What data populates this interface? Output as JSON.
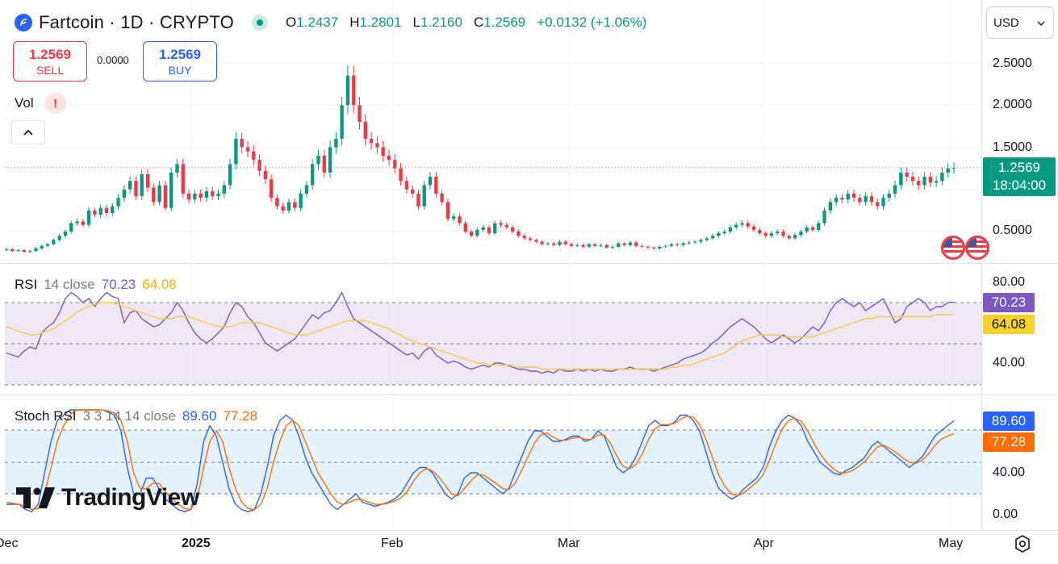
{
  "header": {
    "symbol": "Fartcoin · 1D · CRYPTO",
    "ohlc": [
      {
        "k": "O",
        "v": "1.2437"
      },
      {
        "k": "H",
        "v": "1.2801"
      },
      {
        "k": "L",
        "v": "1.2160"
      },
      {
        "k": "C",
        "v": "1.2569"
      }
    ],
    "change": "+0.0132 (+1.06%)",
    "currency": "USD"
  },
  "trade": {
    "sell_price": "1.2569",
    "sell_label": "SELL",
    "spread": "0.0000",
    "buy_price": "1.2569",
    "buy_label": "BUY"
  },
  "volume": {
    "label": "Vol",
    "warning": "!"
  },
  "price_panel": {
    "last_price": "1.2569",
    "countdown": "18:04:00",
    "y_ticks": [
      "2.5000",
      "2.0000",
      "1.5000",
      "0.5000"
    ]
  },
  "rsi": {
    "name": "RSI",
    "args": "14 close",
    "value": "70.23",
    "ma_value": "64.08",
    "y_ticks": [
      "80.00",
      "40.00"
    ]
  },
  "stoch": {
    "name": "Stoch RSI",
    "args": "3 3 14 14 close",
    "k_value": "89.60",
    "d_value": "77.28",
    "y_ticks": [
      "40.00",
      "0.00"
    ]
  },
  "x_ticks": [
    "Dec",
    "2025",
    "Feb",
    "Mar",
    "Apr",
    "May"
  ],
  "brand": "TradingView",
  "colors": {
    "up": "#089981",
    "down": "#f23645",
    "rsi_line": "#7e57c2",
    "rsi_ma": "#f7c948",
    "stoch_k": "#2962ff",
    "stoch_d": "#ff6d00",
    "rsi_band": "#ede7f6",
    "stoch_band": "#e3f2fd"
  },
  "chart_data": [
    {
      "type": "candlestick",
      "title": "Fartcoin · 1D · CRYPTO",
      "ylim": [
        0.2,
        2.8
      ],
      "x_start": "2024-11-26",
      "x_end": "2025-04-30",
      "closes": [
        0.29,
        0.27,
        0.28,
        0.26,
        0.27,
        0.3,
        0.33,
        0.35,
        0.4,
        0.45,
        0.5,
        0.6,
        0.62,
        0.58,
        0.75,
        0.7,
        0.78,
        0.72,
        0.8,
        0.9,
        1.0,
        1.1,
        0.92,
        1.18,
        1.02,
        0.85,
        1.05,
        0.78,
        1.2,
        1.3,
        0.95,
        0.88,
        0.95,
        0.9,
        0.98,
        0.92,
        0.95,
        1.05,
        1.3,
        1.6,
        1.5,
        1.45,
        1.35,
        1.22,
        1.12,
        0.9,
        0.8,
        0.75,
        0.85,
        0.78,
        0.95,
        1.05,
        1.3,
        1.4,
        1.2,
        1.5,
        1.6,
        2.0,
        2.35,
        2.0,
        1.8,
        1.6,
        1.55,
        1.5,
        1.4,
        1.35,
        1.25,
        1.1,
        1.0,
        0.95,
        0.8,
        1.05,
        1.15,
        0.95,
        0.85,
        0.65,
        0.68,
        0.6,
        0.5,
        0.45,
        0.52,
        0.55,
        0.48,
        0.6,
        0.58,
        0.55,
        0.5,
        0.45,
        0.42,
        0.4,
        0.38,
        0.35,
        0.36,
        0.34,
        0.38,
        0.35,
        0.33,
        0.34,
        0.32,
        0.35,
        0.33,
        0.34,
        0.31,
        0.32,
        0.36,
        0.34,
        0.37,
        0.33,
        0.32,
        0.31,
        0.3,
        0.32,
        0.33,
        0.35,
        0.34,
        0.36,
        0.37,
        0.38,
        0.4,
        0.42,
        0.45,
        0.48,
        0.5,
        0.55,
        0.58,
        0.6,
        0.56,
        0.52,
        0.48,
        0.45,
        0.48,
        0.5,
        0.45,
        0.42,
        0.46,
        0.5,
        0.55,
        0.52,
        0.6,
        0.75,
        0.85,
        0.9,
        0.88,
        0.95,
        0.9,
        0.85,
        0.92,
        0.85,
        0.8,
        0.9,
        0.95,
        1.05,
        1.2,
        1.15,
        1.1,
        1.05,
        1.15,
        1.08,
        1.1,
        1.2,
        1.25,
        1.2569
      ]
    },
    {
      "type": "line",
      "title": "RSI 14 close",
      "ylim": [
        20,
        90
      ],
      "series": [
        {
          "name": "RSI",
          "values": [
            45,
            44,
            43,
            46,
            48,
            47,
            55,
            58,
            60,
            65,
            72,
            75,
            73,
            70,
            72,
            68,
            72,
            75,
            73,
            72,
            60,
            65,
            66,
            62,
            60,
            58,
            59,
            62,
            65,
            70,
            66,
            60,
            55,
            52,
            50,
            52,
            55,
            58,
            65,
            70,
            68,
            63,
            60,
            55,
            50,
            48,
            46,
            48,
            50,
            52,
            56,
            60,
            64,
            62,
            65,
            66,
            70,
            75,
            68,
            62,
            60,
            58,
            56,
            54,
            52,
            50,
            48,
            46,
            44,
            45,
            42,
            46,
            48,
            44,
            42,
            40,
            41,
            40,
            38,
            37,
            38,
            39,
            38,
            40,
            40,
            39,
            38,
            37,
            37,
            36,
            36,
            35,
            36,
            35,
            37,
            36,
            36,
            37,
            36,
            37,
            36,
            37,
            36,
            36,
            37,
            37,
            38,
            37,
            37,
            37,
            36,
            37,
            38,
            39,
            40,
            42,
            43,
            44,
            45,
            47,
            50,
            52,
            55,
            58,
            60,
            62,
            60,
            58,
            55,
            52,
            50,
            52,
            54,
            52,
            50,
            52,
            55,
            58,
            56,
            60,
            66,
            70,
            72,
            70,
            68,
            70,
            66,
            68,
            70,
            72,
            66,
            60,
            62,
            68,
            70,
            72,
            70,
            66,
            68,
            68,
            70,
            70.23
          ]
        },
        {
          "name": "MA",
          "values": [
            58,
            57,
            56,
            55,
            54,
            54,
            55,
            56,
            57,
            59,
            61,
            63,
            65,
            67,
            68,
            69,
            70,
            70,
            70,
            69,
            68,
            67,
            66,
            65,
            64,
            63,
            62,
            62,
            62,
            63,
            63,
            63,
            62,
            61,
            60,
            59,
            58,
            58,
            58,
            59,
            60,
            60,
            60,
            60,
            59,
            58,
            57,
            56,
            55,
            54,
            54,
            54,
            55,
            56,
            57,
            58,
            59,
            60,
            61,
            61,
            61,
            61,
            60,
            59,
            58,
            57,
            55,
            54,
            52,
            51,
            50,
            49,
            48,
            47,
            46,
            45,
            44,
            43,
            42,
            41,
            40,
            40,
            39,
            39,
            39,
            39,
            39,
            38,
            38,
            38,
            38,
            37,
            37,
            37,
            37,
            37,
            37,
            37,
            37,
            37,
            37,
            37,
            37,
            37,
            37,
            37,
            37,
            37,
            37,
            37,
            37,
            37,
            37,
            38,
            38,
            39,
            39,
            40,
            41,
            42,
            43,
            44,
            45,
            47,
            49,
            51,
            52,
            53,
            54,
            54,
            54,
            54,
            53,
            53,
            53,
            53,
            53,
            53,
            54,
            55,
            56,
            57,
            58,
            59,
            60,
            61,
            62,
            62,
            63,
            63,
            63,
            63,
            63,
            63,
            63,
            63,
            63,
            63,
            64,
            64,
            64,
            64.08
          ]
        }
      ]
    },
    {
      "type": "line",
      "title": "Stoch RSI 3 3 14 14 close",
      "ylim": [
        -5,
        100
      ],
      "series": [
        {
          "name": "K",
          "values": [
            10,
            10,
            10,
            5,
            3,
            10,
            40,
            70,
            90,
            95,
            100,
            100,
            100,
            100,
            100,
            100,
            98,
            95,
            80,
            45,
            20,
            20,
            35,
            35,
            25,
            15,
            10,
            5,
            3,
            5,
            30,
            70,
            85,
            75,
            50,
            25,
            10,
            5,
            3,
            5,
            20,
            45,
            75,
            90,
            95,
            90,
            75,
            55,
            40,
            30,
            20,
            10,
            5,
            10,
            15,
            20,
            12,
            10,
            8,
            10,
            12,
            15,
            20,
            30,
            40,
            45,
            45,
            40,
            30,
            20,
            15,
            20,
            35,
            40,
            40,
            35,
            30,
            25,
            20,
            25,
            40,
            55,
            70,
            80,
            80,
            75,
            70,
            70,
            72,
            75,
            75,
            70,
            72,
            80,
            75,
            60,
            45,
            40,
            45,
            55,
            70,
            85,
            90,
            85,
            85,
            88,
            95,
            95,
            90,
            80,
            60,
            40,
            25,
            20,
            15,
            18,
            25,
            30,
            35,
            45,
            65,
            80,
            90,
            95,
            92,
            85,
            70,
            60,
            50,
            45,
            40,
            38,
            42,
            45,
            50,
            55,
            65,
            70,
            65,
            60,
            55,
            50,
            45,
            50,
            55,
            65,
            75,
            80,
            85,
            89.6
          ]
        },
        {
          "name": "D",
          "values": [
            12,
            11,
            10,
            8,
            5,
            6,
            20,
            45,
            70,
            85,
            95,
            100,
            100,
            100,
            100,
            100,
            99,
            97,
            90,
            70,
            40,
            25,
            25,
            30,
            30,
            22,
            15,
            10,
            6,
            5,
            15,
            45,
            70,
            80,
            70,
            45,
            25,
            12,
            6,
            5,
            10,
            25,
            50,
            70,
            85,
            90,
            85,
            70,
            55,
            40,
            30,
            20,
            12,
            10,
            12,
            15,
            14,
            12,
            10,
            10,
            11,
            13,
            16,
            22,
            32,
            40,
            44,
            42,
            36,
            28,
            20,
            18,
            25,
            32,
            38,
            38,
            34,
            30,
            25,
            24,
            30,
            42,
            55,
            68,
            76,
            78,
            74,
            71,
            71,
            73,
            74,
            72,
            72,
            76,
            76,
            68,
            56,
            46,
            44,
            48,
            58,
            72,
            82,
            86,
            86,
            87,
            91,
            94,
            93,
            86,
            72,
            55,
            38,
            27,
            20,
            18,
            21,
            26,
            31,
            38,
            52,
            68,
            82,
            90,
            92,
            89,
            80,
            68,
            58,
            50,
            44,
            40,
            40,
            42,
            46,
            51,
            58,
            65,
            66,
            63,
            59,
            54,
            50,
            49,
            52,
            58,
            66,
            72,
            75,
            77.28
          ]
        }
      ]
    }
  ]
}
